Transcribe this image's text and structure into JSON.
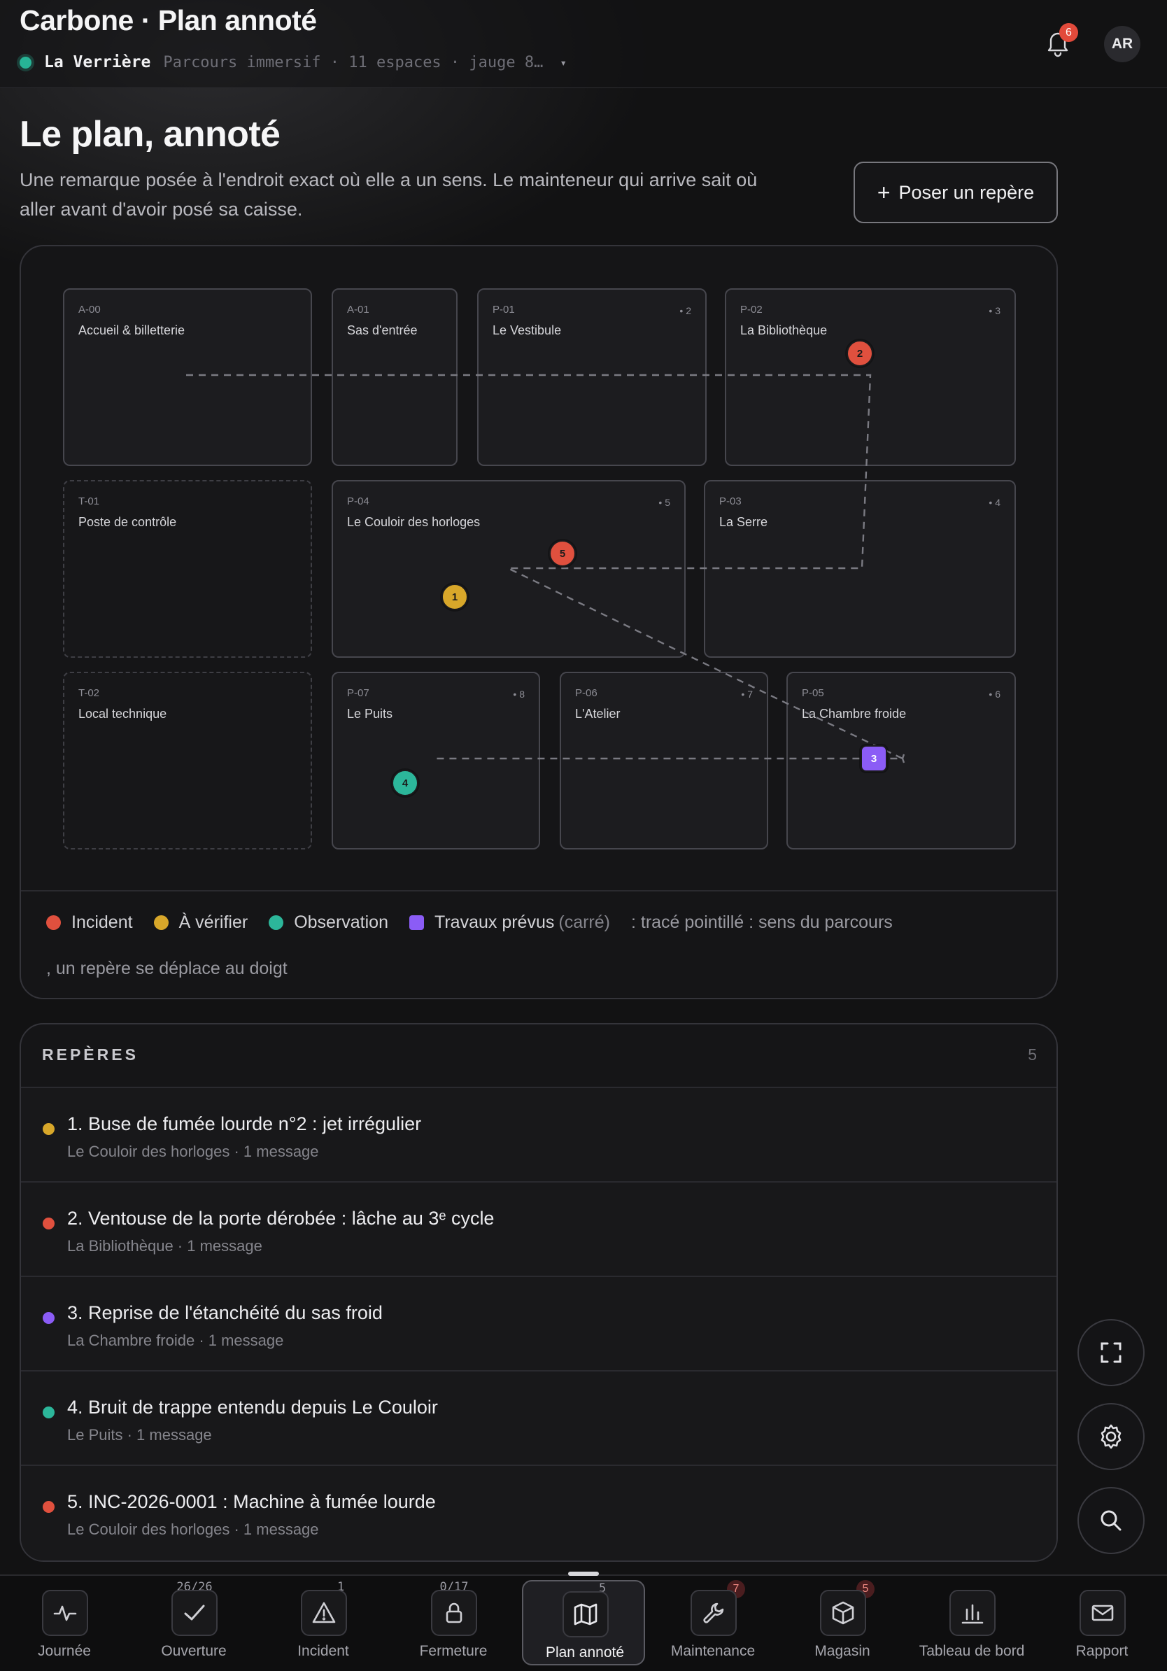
{
  "header": {
    "app_title": "Carbone · Plan annoté",
    "venue_name": "La Verrière",
    "venue_meta": "Parcours immersif · 11 espaces · jauge 8…",
    "caret": "▾",
    "notification_count": "6",
    "avatar_initials": "AR"
  },
  "intro": {
    "title": "Le plan, annoté",
    "lead": "Une remarque posée à l'endroit exact où elle a un sens. Le mainteneur qui arrive sait où aller avant d'avoir posé sa caisse.",
    "add_marker_plus": "+",
    "add_marker_label": "Poser un repère"
  },
  "colors": {
    "incident": "#e0503e",
    "verify": "#d8a72a",
    "observation": "#2cb69a",
    "works": "#8b5cf6"
  },
  "plan": {
    "rooms": [
      {
        "code": "A-00",
        "name": "Accueil & billetterie",
        "count": ""
      },
      {
        "code": "A-01",
        "name": "Sas d'entrée",
        "count": ""
      },
      {
        "code": "P-01",
        "name": "Le Vestibule",
        "count": "• 2"
      },
      {
        "code": "P-02",
        "name": "La Bibliothèque",
        "count": "• 3"
      },
      {
        "code": "T-01",
        "name": "Poste de contrôle",
        "count": ""
      },
      {
        "code": "P-04",
        "name": "Le Couloir des horloges",
        "count": "• 5"
      },
      {
        "code": "P-03",
        "name": "La Serre",
        "count": "• 4"
      },
      {
        "code": "T-02",
        "name": "Local technique",
        "count": ""
      },
      {
        "code": "P-07",
        "name": "Le Puits",
        "count": "• 8"
      },
      {
        "code": "P-06",
        "name": "L'Atelier",
        "count": "• 7"
      },
      {
        "code": "P-05",
        "name": "La Chambre froide",
        "count": "• 6"
      }
    ],
    "pins": [
      {
        "label": "1",
        "kind": "verify"
      },
      {
        "label": "2",
        "kind": "incident"
      },
      {
        "label": "3",
        "kind": "works"
      },
      {
        "label": "4",
        "kind": "observation"
      },
      {
        "label": "5",
        "kind": "incident"
      }
    ]
  },
  "legend": {
    "incident": "Incident",
    "verify": "À vérifier",
    "observation": "Observation",
    "works": "Travaux prévus",
    "works_hint": "(carré)",
    "route_note": ": tracé pointillé : sens du parcours",
    "drag_note": ", un repère se déplace au doigt"
  },
  "markers": {
    "title": "REPÈRES",
    "count": "5",
    "items": [
      {
        "title": "1. Buse de fumée lourde n°2 : jet irrégulier",
        "sub": "Le Couloir des horloges · 1 message",
        "kind": "verify"
      },
      {
        "title": "2. Ventouse de la porte dérobée : lâche au 3ᵉ cycle",
        "sub": "La Bibliothèque · 1 message",
        "kind": "incident"
      },
      {
        "title": "3. Reprise de l'étanchéité du sas froid",
        "sub": "La Chambre froide · 1 message",
        "kind": "works"
      },
      {
        "title": "4. Bruit de trappe entendu depuis Le Couloir",
        "sub": "Le Puits · 1 message",
        "kind": "observation"
      },
      {
        "title": "5. INC-2026-0001 : Machine à fumée lourde",
        "sub": "Le Couloir des horloges · 1 message",
        "kind": "incident"
      }
    ]
  },
  "fabs": [
    {
      "icon": "fullscreen-icon"
    },
    {
      "icon": "gear-icon"
    },
    {
      "icon": "search-icon"
    }
  ],
  "nav": {
    "items": [
      {
        "label": "Journée",
        "icon": "pulse-icon",
        "counter": "",
        "badge": ""
      },
      {
        "label": "Ouverture",
        "icon": "check-icon",
        "counter": "26/26",
        "badge": ""
      },
      {
        "label": "Incident",
        "icon": "warning-icon",
        "counter": "1",
        "badge": ""
      },
      {
        "label": "Fermeture",
        "icon": "lock-icon",
        "counter": "0/17",
        "badge": ""
      },
      {
        "label": "Plan annoté",
        "icon": "map-icon",
        "counter": "5",
        "badge": ""
      },
      {
        "label": "Maintenance",
        "icon": "wrench-icon",
        "counter": "",
        "badge": "7"
      },
      {
        "label": "Magasin",
        "icon": "box-icon",
        "counter": "",
        "badge": "5"
      },
      {
        "label": "Tableau de bord",
        "icon": "chart-icon",
        "counter": "",
        "badge": ""
      },
      {
        "label": "Rapport",
        "icon": "mail-icon",
        "counter": "",
        "badge": ""
      }
    ]
  }
}
